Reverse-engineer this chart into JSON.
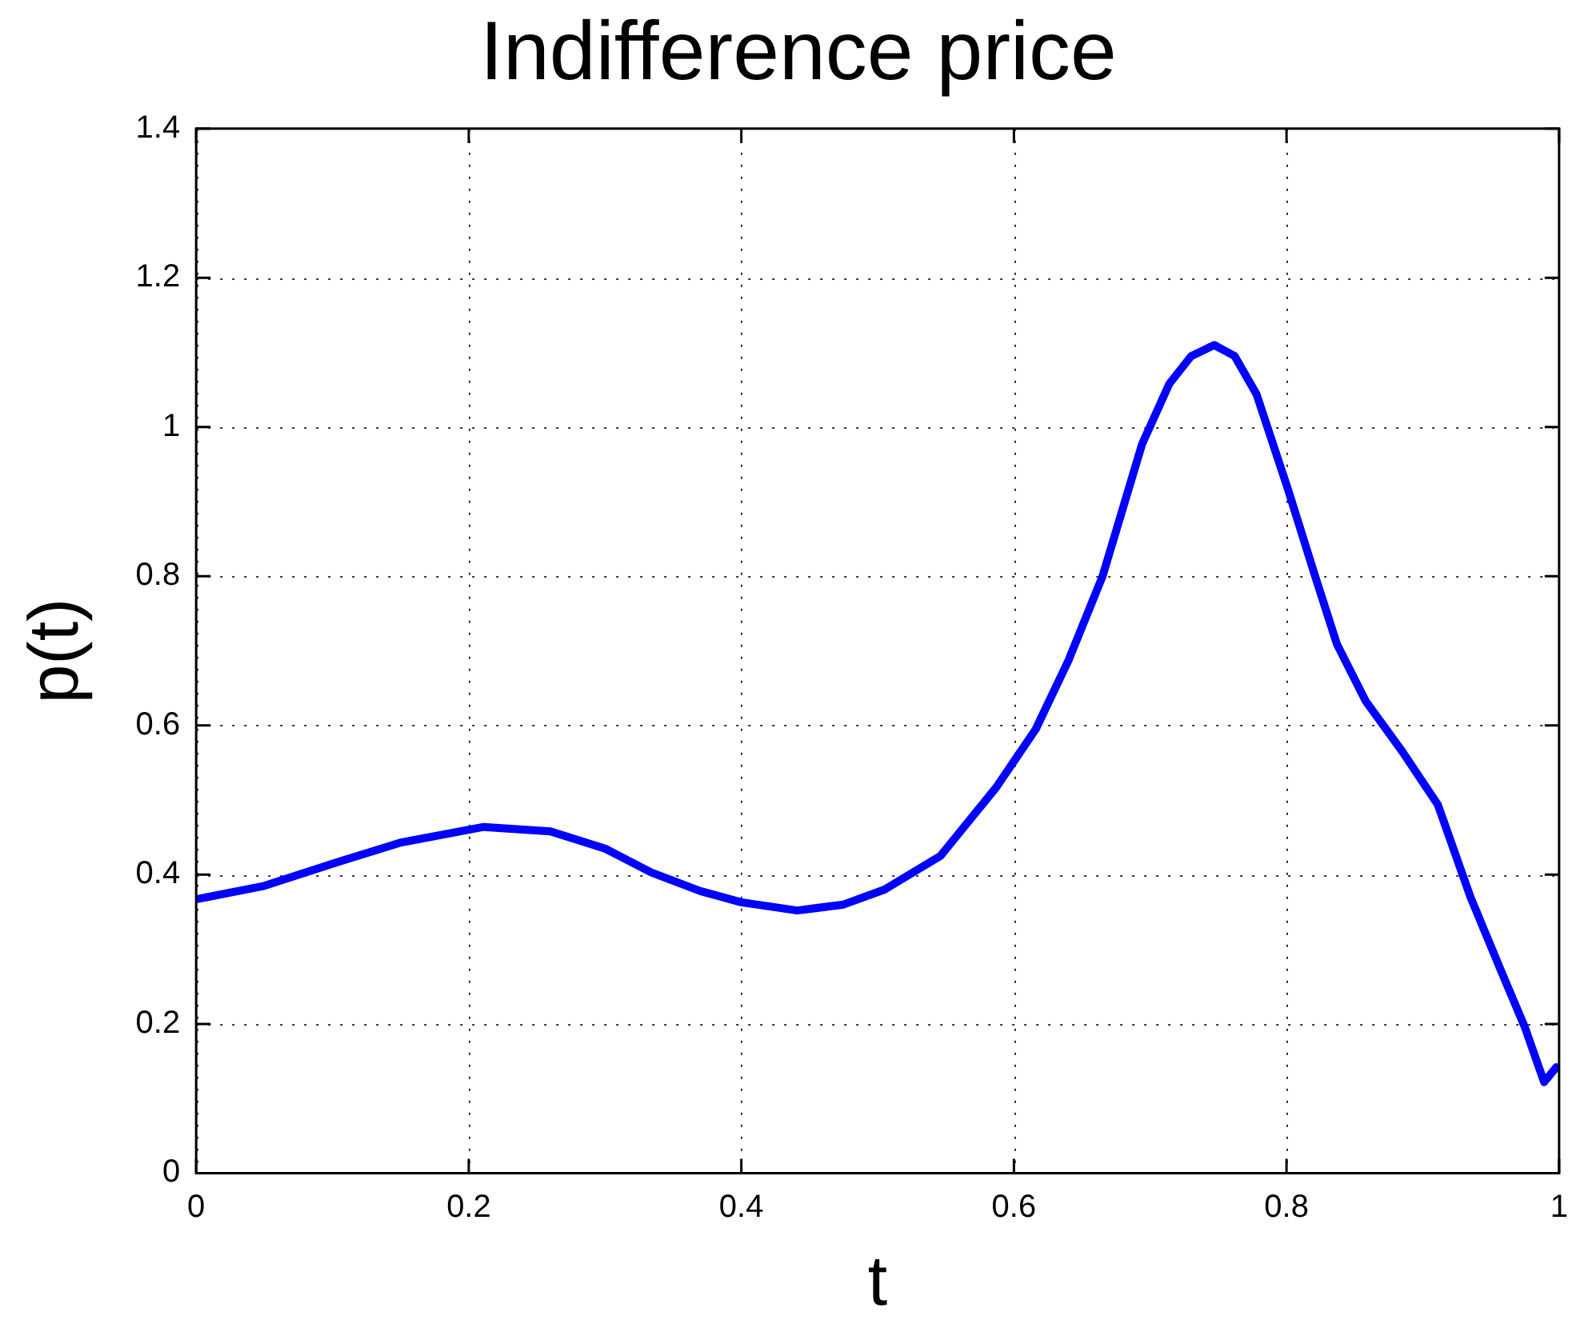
{
  "chart_data": {
    "type": "line",
    "title": "Indifference price",
    "xlabel": "t",
    "ylabel": "p(t)",
    "x": [
      0,
      0.05,
      0.104,
      0.15,
      0.211,
      0.26,
      0.3,
      0.334,
      0.37,
      0.4,
      0.441,
      0.475,
      0.505,
      0.546,
      0.587,
      0.616,
      0.64,
      0.665,
      0.694,
      0.714,
      0.73,
      0.747,
      0.762,
      0.778,
      0.801,
      0.821,
      0.837,
      0.858,
      0.885,
      0.911,
      0.935,
      0.957,
      0.975,
      0.989,
      0.998
    ],
    "series": [
      {
        "color": "#0000ff",
        "values": [
          0.367,
          0.385,
          0.417,
          0.443,
          0.464,
          0.458,
          0.435,
          0.403,
          0.378,
          0.363,
          0.352,
          0.36,
          0.38,
          0.425,
          0.517,
          0.595,
          0.687,
          0.8,
          0.977,
          1.058,
          1.095,
          1.11,
          1.095,
          1.044,
          0.917,
          0.8,
          0.709,
          0.633,
          0.565,
          0.494,
          0.37,
          0.273,
          0.195,
          0.122,
          0.142
        ]
      }
    ],
    "xlim": [
      0,
      1
    ],
    "xticks": [
      0,
      0.2,
      0.4,
      0.6,
      0.8,
      1
    ],
    "ylim": [
      0,
      1.4
    ],
    "yticks": [
      0,
      0.2,
      0.4,
      0.6,
      0.8,
      1,
      1.2,
      1.4
    ],
    "grid": true,
    "line_style": "solid",
    "marker": "none",
    "legend": false
  }
}
